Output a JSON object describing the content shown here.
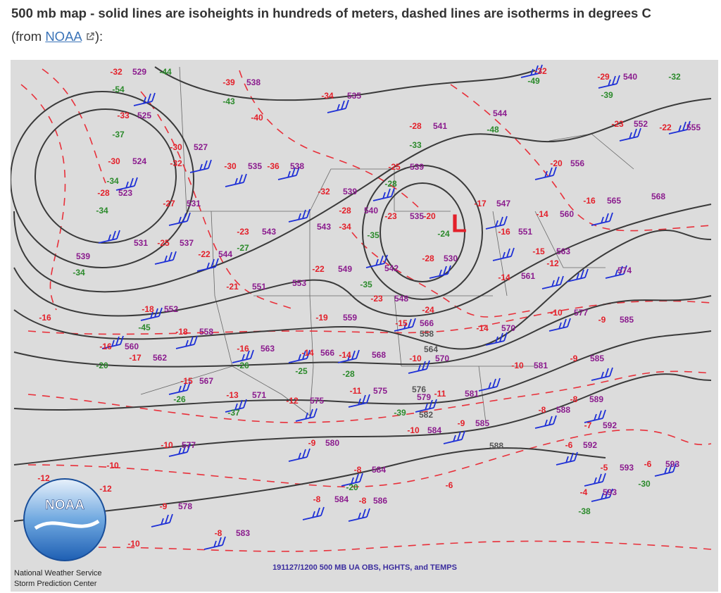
{
  "header": {
    "title": "500 mb map - solid lines are isoheights in hundreds of meters, dashed lines are isotherms in degrees C",
    "source_prefix": "(from",
    "source_link": "NOAA",
    "source_suffix": "):"
  },
  "map": {
    "caption": "191127/1200 500 MB UA OBS, HGHTS, and TEMPS",
    "low_marker": "L",
    "logo": {
      "text": "NOAA",
      "org": "National Weather Service",
      "center": "Storm Prediction Center"
    },
    "colors": {
      "temp": "#e3202a",
      "height": "#8b1c8e",
      "dew": "#2b8a2b",
      "contour": "#555555",
      "isoheight": "#3a3a3a",
      "isotherm": "#e8303a",
      "wind": "#1d2fd6",
      "background": "#dcdcdc"
    },
    "labels": [
      [
        "-32",
        "temp"
      ],
      [
        "529",
        "height"
      ],
      [
        "-44",
        "dew"
      ],
      [
        "-54",
        "dew"
      ],
      [
        "-33",
        "temp"
      ],
      [
        "525",
        "height"
      ],
      [
        "-37",
        "dew"
      ],
      [
        "-30",
        "temp"
      ],
      [
        "524",
        "height"
      ],
      [
        "-34",
        "dew"
      ],
      [
        "-28",
        "temp"
      ],
      [
        "523",
        "height"
      ],
      [
        "-34",
        "dew"
      ],
      [
        "531",
        "height"
      ],
      [
        "-25",
        "temp"
      ],
      [
        "537",
        "height"
      ],
      [
        "539",
        "height"
      ],
      [
        "-34",
        "dew"
      ],
      [
        "-39",
        "temp"
      ],
      [
        "538",
        "height"
      ],
      [
        "-43",
        "dew"
      ],
      [
        "-34",
        "temp"
      ],
      [
        "535",
        "height"
      ],
      [
        "-40",
        "temp"
      ],
      [
        "-30",
        "temp"
      ],
      [
        "527",
        "height"
      ],
      [
        "-32",
        "temp"
      ],
      [
        "-30",
        "temp"
      ],
      [
        "535",
        "height"
      ],
      [
        "-36",
        "temp"
      ],
      [
        "538",
        "height"
      ],
      [
        "-27",
        "temp"
      ],
      [
        "531",
        "height"
      ],
      [
        "-32",
        "temp"
      ],
      [
        "539",
        "height"
      ],
      [
        "-28",
        "temp"
      ],
      [
        "540",
        "height"
      ],
      [
        "543",
        "height"
      ],
      [
        "-34",
        "temp"
      ],
      [
        "-23",
        "temp"
      ],
      [
        "543",
        "height"
      ],
      [
        "544",
        "height"
      ],
      [
        "-22",
        "temp"
      ],
      [
        "-27",
        "dew"
      ],
      [
        "-21",
        "temp"
      ],
      [
        "551",
        "height"
      ],
      [
        "553",
        "height"
      ],
      [
        "-22",
        "temp"
      ],
      [
        "549",
        "height"
      ],
      [
        "542",
        "height"
      ],
      [
        "-28",
        "temp"
      ],
      [
        "530",
        "height"
      ],
      [
        "-25",
        "temp"
      ],
      [
        "539",
        "height"
      ],
      [
        "-28",
        "dew"
      ],
      [
        "-28",
        "temp"
      ],
      [
        "541",
        "height"
      ],
      [
        "-23",
        "temp"
      ],
      [
        "535",
        "height"
      ],
      [
        "-20",
        "temp"
      ],
      [
        "-24",
        "dew"
      ],
      [
        "-17",
        "temp"
      ],
      [
        "547",
        "height"
      ],
      [
        "-16",
        "temp"
      ],
      [
        "551",
        "height"
      ],
      [
        "-15",
        "temp"
      ],
      [
        "563",
        "height"
      ],
      [
        "-14",
        "temp"
      ],
      [
        "560",
        "height"
      ],
      [
        "-14",
        "temp"
      ],
      [
        "561",
        "height"
      ],
      [
        "-20",
        "temp"
      ],
      [
        "556",
        "height"
      ],
      [
        "-16",
        "temp"
      ],
      [
        "565",
        "height"
      ],
      [
        "568",
        "height"
      ],
      [
        "544",
        "height"
      ],
      [
        "-48",
        "dew"
      ],
      [
        "-29",
        "temp"
      ],
      [
        "540",
        "height"
      ],
      [
        "-32",
        "dew"
      ],
      [
        "-39",
        "dew"
      ],
      [
        "-23",
        "temp"
      ],
      [
        "552",
        "height"
      ],
      [
        "-22",
        "temp"
      ],
      [
        "555",
        "height"
      ],
      [
        "-12",
        "temp"
      ],
      [
        "574",
        "height"
      ],
      [
        "-10",
        "temp"
      ],
      [
        "577",
        "height"
      ],
      [
        "-9",
        "temp"
      ],
      [
        "585",
        "height"
      ],
      [
        "-18",
        "temp"
      ],
      [
        "552",
        "height"
      ],
      [
        "-45",
        "dew"
      ],
      [
        "-18",
        "temp"
      ],
      [
        "558",
        "height"
      ],
      [
        "-16",
        "temp"
      ],
      [
        "560",
        "height"
      ],
      [
        "-17",
        "temp"
      ],
      [
        "562",
        "height"
      ],
      [
        "-20",
        "dew"
      ],
      [
        "-16",
        "temp"
      ],
      [
        "563",
        "height"
      ],
      [
        "-26",
        "dew"
      ],
      [
        "-15",
        "temp"
      ],
      [
        "567",
        "height"
      ],
      [
        "-14",
        "temp"
      ],
      [
        "566",
        "height"
      ],
      [
        "-14",
        "temp"
      ],
      [
        "568",
        "height"
      ],
      [
        "-19",
        "temp"
      ],
      [
        "559",
        "height"
      ],
      [
        "-15",
        "temp"
      ],
      [
        "566",
        "height"
      ],
      [
        "-10",
        "temp"
      ],
      [
        "570",
        "height"
      ],
      [
        "-14",
        "temp"
      ],
      [
        "570",
        "height"
      ],
      [
        "-10",
        "temp"
      ],
      [
        "581",
        "height"
      ],
      [
        "-9",
        "temp"
      ],
      [
        "585",
        "height"
      ],
      [
        "-13",
        "temp"
      ],
      [
        "571",
        "height"
      ],
      [
        "-12",
        "temp"
      ],
      [
        "575",
        "height"
      ],
      [
        "-11",
        "temp"
      ],
      [
        "575",
        "height"
      ],
      [
        "-11",
        "temp"
      ],
      [
        "579",
        "height"
      ],
      [
        "581",
        "height"
      ],
      [
        "-10",
        "temp"
      ],
      [
        "584",
        "height"
      ],
      [
        "-9",
        "temp"
      ],
      [
        "585",
        "height"
      ],
      [
        "-8",
        "temp"
      ],
      [
        "588",
        "height"
      ],
      [
        "-8",
        "temp"
      ],
      [
        "589",
        "height"
      ],
      [
        "-7",
        "temp"
      ],
      [
        "592",
        "height"
      ],
      [
        "-6",
        "temp"
      ],
      [
        "592",
        "height"
      ],
      [
        "-5",
        "temp"
      ],
      [
        "593",
        "height"
      ],
      [
        "-6",
        "temp"
      ],
      [
        "593",
        "height"
      ],
      [
        "-30",
        "dew"
      ],
      [
        "-10",
        "temp"
      ],
      [
        "577",
        "height"
      ],
      [
        "-9",
        "temp"
      ],
      [
        "580",
        "height"
      ],
      [
        "-8",
        "temp"
      ],
      [
        "584",
        "height"
      ],
      [
        "-8",
        "temp"
      ],
      [
        "584",
        "height"
      ],
      [
        "-8",
        "temp"
      ],
      [
        "586",
        "height"
      ],
      [
        "-20",
        "dew"
      ],
      [
        "-9",
        "temp"
      ],
      [
        "578",
        "height"
      ],
      [
        "-8",
        "temp"
      ],
      [
        "583",
        "height"
      ],
      [
        "-10",
        "temp"
      ],
      [
        "-4",
        "temp"
      ],
      [
        "593",
        "height"
      ],
      [
        "-38",
        "dew"
      ],
      [
        "-49",
        "dew"
      ],
      [
        "-32",
        "temp"
      ],
      [
        "-33",
        "dew"
      ],
      [
        "-35",
        "dew"
      ],
      [
        "-35",
        "dew"
      ],
      [
        "-23",
        "temp"
      ],
      [
        "548",
        "height"
      ],
      [
        "-24",
        "temp"
      ],
      [
        "-28",
        "dew"
      ],
      [
        "-25",
        "dew"
      ],
      [
        "-39",
        "dew"
      ],
      [
        "-37",
        "dew"
      ],
      [
        "-26",
        "dew"
      ],
      [
        "-12",
        "temp"
      ],
      [
        "-10",
        "temp"
      ],
      [
        "-12",
        "temp"
      ],
      [
        "-16",
        "temp"
      ],
      [
        "-6",
        "temp"
      ],
      [
        "558",
        "contour"
      ],
      [
        "564",
        "contour"
      ],
      [
        "576",
        "contour"
      ],
      [
        "582",
        "contour"
      ],
      [
        "588",
        "contour"
      ]
    ]
  }
}
